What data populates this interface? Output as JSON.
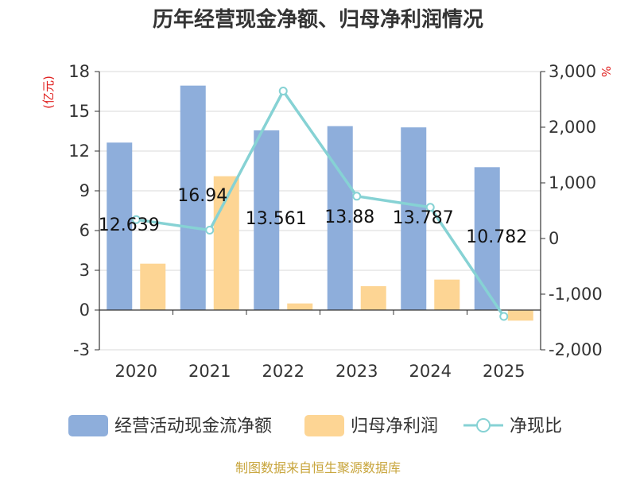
{
  "chart_data": {
    "type": "bar",
    "title": "历年经营现金净额、归母净利润情况",
    "categories": [
      "2020",
      "2021",
      "2022",
      "2023",
      "2024",
      "2025"
    ],
    "series": [
      {
        "name": "经营活动现金流净额",
        "type": "bar",
        "axis": "left",
        "color": "#8eaedb",
        "values": [
          12.639,
          16.94,
          13.561,
          13.88,
          13.787,
          10.782
        ],
        "labels": [
          "12.639",
          "16.94",
          "13.561",
          "13.88",
          "13.787",
          "10.782"
        ]
      },
      {
        "name": "归母净利润",
        "type": "bar",
        "axis": "left",
        "color": "#fdd594",
        "values": [
          3.5,
          10.1,
          0.5,
          1.8,
          2.3,
          -0.8
        ]
      },
      {
        "name": "净现比",
        "type": "line",
        "axis": "right",
        "color": "#86d2d4",
        "values": [
          340,
          150,
          2650,
          760,
          560,
          -1400
        ]
      }
    ],
    "left_axis": {
      "unit": "(亿元)",
      "ylim": [
        -3,
        18
      ],
      "ticks": [
        -3,
        0,
        3,
        6,
        9,
        12,
        15,
        18
      ],
      "tick_labels": [
        "-3",
        "0",
        "3",
        "6",
        "9",
        "12",
        "15",
        "18"
      ]
    },
    "right_axis": {
      "unit": "%",
      "ylim": [
        -2000,
        3000
      ],
      "ticks": [
        -2000,
        -1000,
        0,
        1000,
        2000,
        3000
      ],
      "tick_labels": [
        "-2,000",
        "-1,000",
        "0",
        "1,000",
        "2,000",
        "3,000"
      ]
    },
    "grid": true,
    "legend_position": "bottom"
  },
  "source_text": "制图数据来自恒生聚源数据库",
  "colors": {
    "source": "#c8a53c",
    "unit": "#e0201f",
    "grid": "#d9d9d9",
    "axis": "#333333"
  }
}
